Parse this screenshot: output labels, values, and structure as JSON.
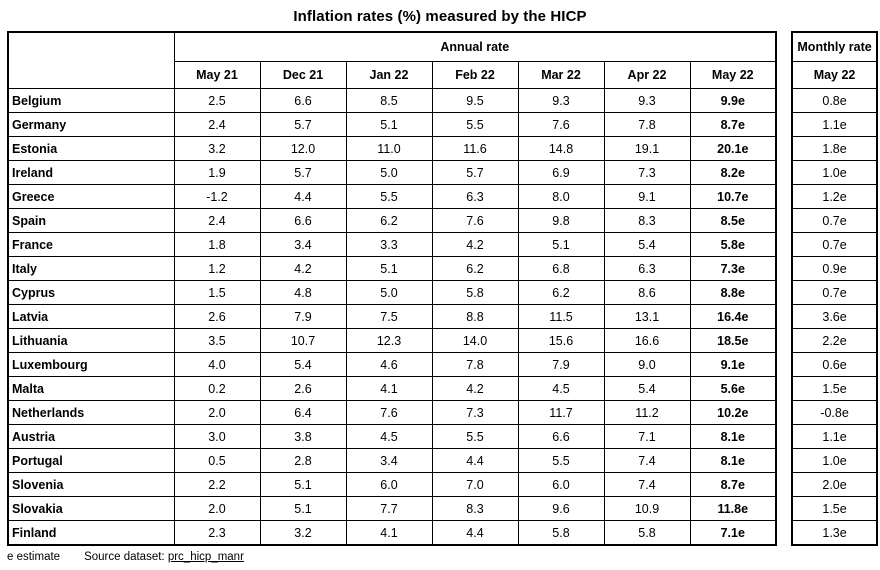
{
  "title": "Inflation rates (%) measured by the HICP",
  "table": {
    "annual_rate_label": "Annual rate",
    "months": [
      "May 21",
      "Dec 21",
      "Jan 22",
      "Feb 22",
      "Mar 22",
      "Apr 22",
      "May 22"
    ],
    "rows": [
      {
        "country": "Belgium",
        "values": [
          "2.5",
          "6.6",
          "8.5",
          "9.5",
          "9.3",
          "9.3",
          "9.9e"
        ],
        "monthly": "0.8e"
      },
      {
        "country": "Germany",
        "values": [
          "2.4",
          "5.7",
          "5.1",
          "5.5",
          "7.6",
          "7.8",
          "8.7e"
        ],
        "monthly": "1.1e"
      },
      {
        "country": "Estonia",
        "values": [
          "3.2",
          "12.0",
          "11.0",
          "11.6",
          "14.8",
          "19.1",
          "20.1e"
        ],
        "monthly": "1.8e"
      },
      {
        "country": "Ireland",
        "values": [
          "1.9",
          "5.7",
          "5.0",
          "5.7",
          "6.9",
          "7.3",
          "8.2e"
        ],
        "monthly": "1.0e"
      },
      {
        "country": "Greece",
        "values": [
          "-1.2",
          "4.4",
          "5.5",
          "6.3",
          "8.0",
          "9.1",
          "10.7e"
        ],
        "monthly": "1.2e"
      },
      {
        "country": "Spain",
        "values": [
          "2.4",
          "6.6",
          "6.2",
          "7.6",
          "9.8",
          "8.3",
          "8.5e"
        ],
        "monthly": "0.7e"
      },
      {
        "country": "France",
        "values": [
          "1.8",
          "3.4",
          "3.3",
          "4.2",
          "5.1",
          "5.4",
          "5.8e"
        ],
        "monthly": "0.7e"
      },
      {
        "country": "Italy",
        "values": [
          "1.2",
          "4.2",
          "5.1",
          "6.2",
          "6.8",
          "6.3",
          "7.3e"
        ],
        "monthly": "0.9e"
      },
      {
        "country": "Cyprus",
        "values": [
          "1.5",
          "4.8",
          "5.0",
          "5.8",
          "6.2",
          "8.6",
          "8.8e"
        ],
        "monthly": "0.7e"
      },
      {
        "country": "Latvia",
        "values": [
          "2.6",
          "7.9",
          "7.5",
          "8.8",
          "11.5",
          "13.1",
          "16.4e"
        ],
        "monthly": "3.6e"
      },
      {
        "country": "Lithuania",
        "values": [
          "3.5",
          "10.7",
          "12.3",
          "14.0",
          "15.6",
          "16.6",
          "18.5e"
        ],
        "monthly": "2.2e"
      },
      {
        "country": "Luxembourg",
        "values": [
          "4.0",
          "5.4",
          "4.6",
          "7.8",
          "7.9",
          "9.0",
          "9.1e"
        ],
        "monthly": "0.6e"
      },
      {
        "country": "Malta",
        "values": [
          "0.2",
          "2.6",
          "4.1",
          "4.2",
          "4.5",
          "5.4",
          "5.6e"
        ],
        "monthly": "1.5e"
      },
      {
        "country": "Netherlands",
        "values": [
          "2.0",
          "6.4",
          "7.6",
          "7.3",
          "11.7",
          "11.2",
          "10.2e"
        ],
        "monthly": "-0.8e"
      },
      {
        "country": "Austria",
        "values": [
          "3.0",
          "3.8",
          "4.5",
          "5.5",
          "6.6",
          "7.1",
          "8.1e"
        ],
        "monthly": "1.1e"
      },
      {
        "country": "Portugal",
        "values": [
          "0.5",
          "2.8",
          "3.4",
          "4.4",
          "5.5",
          "7.4",
          "8.1e"
        ],
        "monthly": "1.0e"
      },
      {
        "country": "Slovenia",
        "values": [
          "2.2",
          "5.1",
          "6.0",
          "7.0",
          "6.0",
          "7.4",
          "8.7e"
        ],
        "monthly": "2.0e"
      },
      {
        "country": "Slovakia",
        "values": [
          "2.0",
          "5.1",
          "7.7",
          "8.3",
          "9.6",
          "10.9",
          "11.8e"
        ],
        "monthly": "1.5e"
      },
      {
        "country": "Finland",
        "values": [
          "2.3",
          "3.2",
          "4.1",
          "4.4",
          "5.8",
          "5.8",
          "7.1e"
        ],
        "monthly": "1.3e"
      }
    ]
  },
  "monthly": {
    "label": "Monthly rate",
    "month": "May 22"
  },
  "footer": {
    "estimate_note": "e estimate",
    "source_label": "Source dataset:",
    "dataset_code": "prc_hicp_manr"
  }
}
